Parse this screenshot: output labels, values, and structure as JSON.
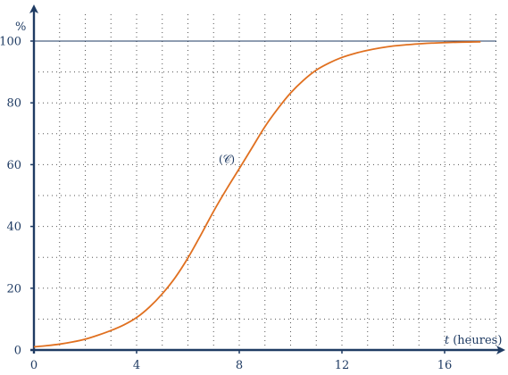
{
  "chart_data": {
    "type": "line",
    "xlim": [
      0,
      17.4
    ],
    "ylim": [
      0,
      110
    ],
    "x_ticks": [
      0,
      4,
      8,
      12,
      16
    ],
    "y_ticks": [
      0,
      20,
      40,
      60,
      80,
      100
    ],
    "x_ticks_labels": [
      "0",
      "4",
      "8",
      "12",
      "16"
    ],
    "y_ticks_labels": [
      "0",
      "20",
      "40",
      "60",
      "80",
      "100"
    ],
    "x_minor_step": 1,
    "y_minor_step": 10,
    "grid": true,
    "ylabel": "%",
    "xlabel_var": "t",
    "xlabel_unit": "(heures)",
    "reference_line": {
      "y": 100
    },
    "series": [
      {
        "label": "(𝒞)",
        "label_anchor": {
          "x": 7.2,
          "y": 60
        },
        "color": "#e07020",
        "x": [
          0,
          0.5,
          1,
          1.5,
          2,
          2.5,
          3,
          3.5,
          4,
          4.5,
          5,
          5.5,
          6,
          6.5,
          7,
          7.5,
          8,
          8.5,
          9,
          9.5,
          10,
          10.5,
          11,
          11.5,
          12,
          12.5,
          13,
          13.5,
          14,
          14.5,
          15,
          15.5,
          16,
          16.5,
          17,
          17.4
        ],
        "y": [
          1,
          1.4,
          1.9,
          2.6,
          3.5,
          4.8,
          6.3,
          8.1,
          10.5,
          13.9,
          18.2,
          23.4,
          29.8,
          37.2,
          44.9,
          52.0,
          58.7,
          65.5,
          72.3,
          78.1,
          83.2,
          87.3,
          90.6,
          92.9,
          94.7,
          96.0,
          97.0,
          97.8,
          98.4,
          98.8,
          99.1,
          99.35,
          99.5,
          99.62,
          99.7,
          99.75
        ]
      }
    ],
    "colors": {
      "axis": "#1f3b63",
      "grid": "#555555",
      "curve": "#e07020"
    }
  }
}
